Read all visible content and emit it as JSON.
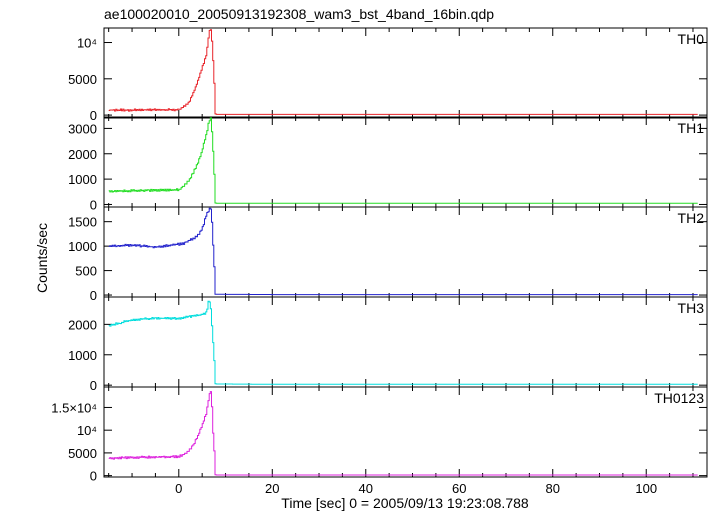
{
  "chart_data": {
    "type": "line",
    "title": "ae100020010_20050913192308_wam3_bst_4band_16bin.qdp",
    "xlabel": "Time [sec] 0 = 2005/09/13 19:23:08.788",
    "ylabel": "Counts/sec",
    "xlim": [
      -16,
      113
    ],
    "xticks": [
      0,
      20,
      40,
      60,
      80,
      100
    ],
    "xtick_labels": [
      "0",
      "20",
      "40",
      "60",
      "80",
      "100"
    ],
    "time_breakpoints": [
      -15,
      -10,
      -5,
      0,
      1,
      2,
      3,
      4,
      5,
      5.5,
      6,
      6.5,
      7,
      7.3,
      7.5,
      7.8,
      8,
      20,
      40,
      60,
      80,
      100,
      111
    ],
    "grid": false,
    "panels": [
      {
        "name": "TH0",
        "color": "#e8242a",
        "ylim": [
          -400,
          12000
        ],
        "yticks": [
          0,
          5000,
          10000
        ],
        "ytick_labels": [
          "0",
          "5000",
          "10⁴"
        ],
        "values": [
          700,
          700,
          720,
          750,
          1100,
          1600,
          2800,
          4500,
          6500,
          7500,
          8500,
          11500,
          12000,
          7600,
          7400,
          200,
          100,
          100,
          100,
          100,
          100,
          100,
          100
        ]
      },
      {
        "name": "TH1",
        "color": "#22dd22",
        "ylim": [
          -100,
          3450
        ],
        "yticks": [
          0,
          1000,
          2000,
          3000
        ],
        "ytick_labels": [
          "0",
          "1000",
          "2000",
          "3000"
        ],
        "values": [
          520,
          540,
          560,
          580,
          700,
          900,
          1200,
          1600,
          2100,
          2500,
          2800,
          3300,
          3450,
          2100,
          2000,
          60,
          50,
          50,
          50,
          50,
          50,
          50,
          50
        ]
      },
      {
        "name": "TH2",
        "color": "#2222cc",
        "ylim": [
          -40,
          1800
        ],
        "yticks": [
          0,
          500,
          1000,
          1500
        ],
        "ytick_labels": [
          "0",
          "500",
          "1000",
          "1500"
        ],
        "values": [
          1000,
          1020,
          980,
          1040,
          1050,
          1100,
          1150,
          1200,
          1350,
          1500,
          1650,
          1750,
          1780,
          1050,
          980,
          20,
          15,
          10,
          10,
          10,
          10,
          10,
          10
        ]
      },
      {
        "name": "TH3",
        "color": "#00dddd",
        "ylim": [
          -60,
          2900
        ],
        "yticks": [
          0,
          1000,
          2000
        ],
        "ytick_labels": [
          "0",
          "1000",
          "2000"
        ],
        "values": [
          1950,
          2150,
          2200,
          2200,
          2220,
          2250,
          2270,
          2300,
          2320,
          2350,
          2400,
          2850,
          2400,
          1400,
          1350,
          50,
          40,
          30,
          30,
          30,
          30,
          30,
          30
        ]
      },
      {
        "name": "TH0123",
        "color": "#dd22dd",
        "ylim": [
          -300,
          19500
        ],
        "yticks": [
          0,
          5000,
          10000,
          15000
        ],
        "ytick_labels": [
          "0",
          "5000",
          "10⁴",
          "1.5×10⁴"
        ],
        "values": [
          3800,
          4000,
          4100,
          4200,
          4600,
          5300,
          6500,
          8500,
          11000,
          12500,
          14000,
          17500,
          19000,
          9500,
          9200,
          200,
          150,
          150,
          150,
          150,
          150,
          150,
          150
        ]
      }
    ]
  }
}
